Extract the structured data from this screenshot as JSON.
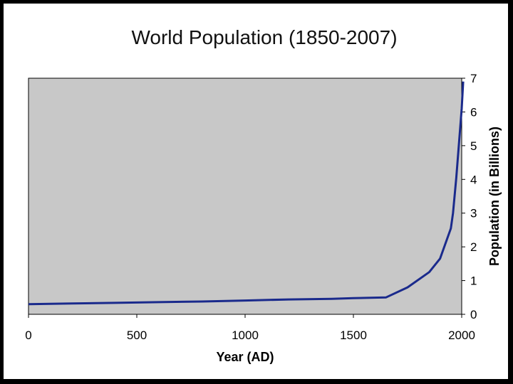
{
  "chart_data": {
    "type": "line",
    "title": "World Population (1850-2007)",
    "xlabel": "Year (AD)",
    "ylabel": "Population (in Billions)",
    "xlim": [
      0,
      2000
    ],
    "ylim": [
      0,
      7
    ],
    "x_ticks": [
      "0",
      "500",
      "1000",
      "1500",
      "2000"
    ],
    "y_ticks": [
      "0",
      "1",
      "2",
      "3",
      "4",
      "5",
      "6",
      "7"
    ],
    "grid": false,
    "legend": "none",
    "colors": {
      "plot_background": "#c8c8c8",
      "line": "#1a2a8c",
      "frame": "#000000"
    },
    "series": [
      {
        "x": [
          0,
          200,
          400,
          600,
          800,
          1000,
          1200,
          1400,
          1500,
          1650,
          1750,
          1850,
          1900,
          1950,
          1960,
          1975,
          2000,
          2007
        ],
        "values": [
          0.3,
          0.32,
          0.34,
          0.36,
          0.38,
          0.41,
          0.44,
          0.46,
          0.48,
          0.5,
          0.8,
          1.25,
          1.65,
          2.55,
          3.0,
          4.05,
          6.1,
          6.9
        ]
      }
    ]
  }
}
